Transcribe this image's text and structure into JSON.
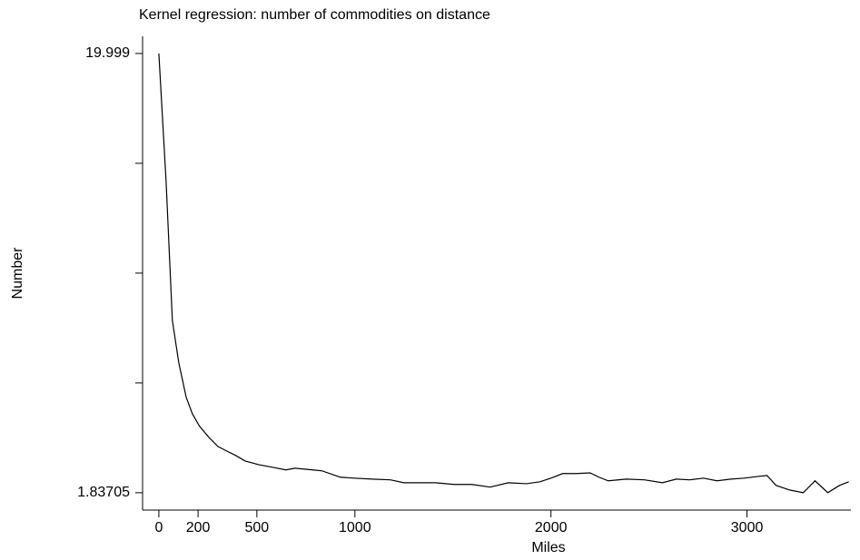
{
  "chart_data": {
    "type": "line",
    "title": "Kernel regression: number of commodities on distance",
    "xlabel": "Miles",
    "ylabel": "Number",
    "x": [
      0,
      37,
      69,
      102,
      139,
      171,
      208,
      255,
      301,
      347,
      394,
      440,
      509,
      579,
      648,
      694,
      787,
      833,
      926,
      995,
      1088,
      1181,
      1250,
      1319,
      1412,
      1505,
      1597,
      1690,
      1782,
      1875,
      1944,
      2000,
      2060,
      2130,
      2199,
      2245,
      2292,
      2384,
      2477,
      2569,
      2639,
      2708,
      2778,
      2847,
      2917,
      2986,
      3056,
      3102,
      3148,
      3218,
      3287,
      3347,
      3412,
      3472,
      3519
    ],
    "series": [
      {
        "color": "#000000",
        "values": [
          19.999,
          14.7,
          8.95,
          7.2,
          5.8,
          5.1,
          4.58,
          4.13,
          3.75,
          3.56,
          3.37,
          3.15,
          3.0,
          2.89,
          2.78,
          2.85,
          2.78,
          2.74,
          2.48,
          2.44,
          2.4,
          2.37,
          2.25,
          2.25,
          2.25,
          2.18,
          2.18,
          2.07,
          2.25,
          2.21,
          2.29,
          2.44,
          2.63,
          2.63,
          2.66,
          2.48,
          2.33,
          2.4,
          2.37,
          2.25,
          2.4,
          2.37,
          2.44,
          2.33,
          2.4,
          2.44,
          2.51,
          2.55,
          2.14,
          1.95,
          1.84,
          2.33,
          1.84,
          2.14,
          2.29
        ]
      }
    ],
    "xlim": [
      -83,
      3530
    ],
    "ylim": [
      1.12,
      20.71
    ],
    "xticks": [
      0,
      200,
      500,
      1000,
      2000,
      3000
    ],
    "yticks": [
      19.999,
      1.83705
    ],
    "yminorticks": [
      6.3776,
      10.918,
      15.4585
    ]
  }
}
